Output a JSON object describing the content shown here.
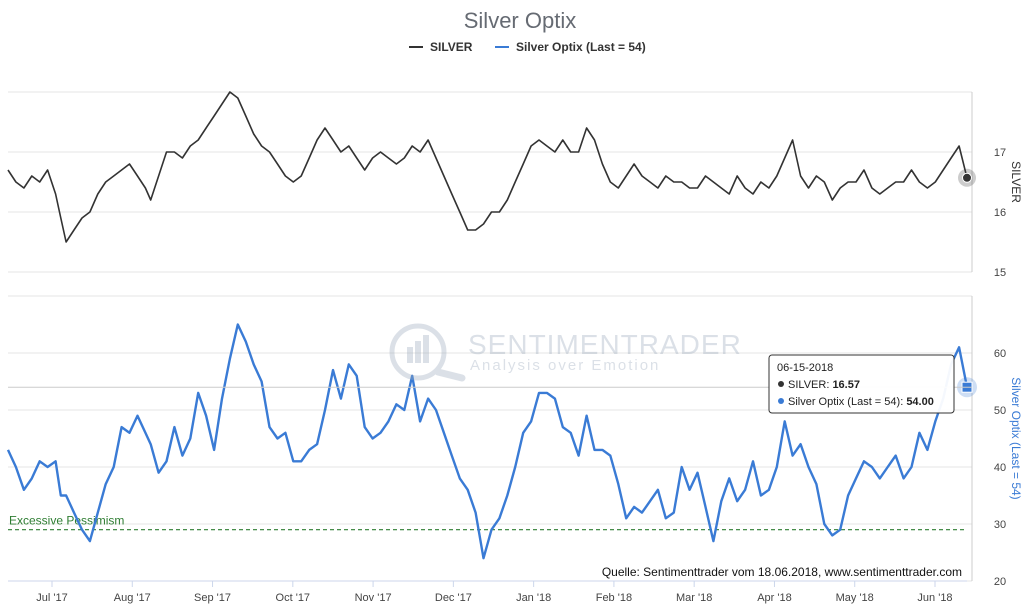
{
  "chart_data": {
    "type": "line",
    "title": "Silver Optix",
    "legend": {
      "position": "top-center",
      "items": [
        {
          "name": "SILVER",
          "color": "#333333"
        },
        {
          "name": "Silver Optix (Last = 54)",
          "color": "#3a7bd5"
        }
      ]
    },
    "x_tick_labels": [
      "Jul '17",
      "Aug '17",
      "Sep '17",
      "Oct '17",
      "Nov '17",
      "Dec '17",
      "Jan '18",
      "Feb '18",
      "Mar '18",
      "Apr '18",
      "May '18",
      "Jun '18"
    ],
    "x_range": [
      "2017-06-16",
      "2018-06-15"
    ],
    "panels": [
      {
        "id": "silver",
        "series_name": "SILVER",
        "color": "#333333",
        "axis_title": "SILVER",
        "y_range": [
          15,
          18
        ],
        "y_ticks": [
          15,
          16,
          17
        ],
        "points": [
          {
            "t": 0,
            "v": 16.7
          },
          {
            "t": 1.5,
            "v": 16.5
          },
          {
            "t": 3,
            "v": 16.4
          },
          {
            "t": 4.5,
            "v": 16.6
          },
          {
            "t": 6,
            "v": 16.5
          },
          {
            "t": 7.5,
            "v": 16.7
          },
          {
            "t": 9,
            "v": 16.3
          },
          {
            "t": 10,
            "v": 15.9
          },
          {
            "t": 11,
            "v": 15.5
          },
          {
            "t": 12.5,
            "v": 15.7
          },
          {
            "t": 14,
            "v": 15.9
          },
          {
            "t": 15.5,
            "v": 16.0
          },
          {
            "t": 17,
            "v": 16.3
          },
          {
            "t": 18.5,
            "v": 16.5
          },
          {
            "t": 20,
            "v": 16.6
          },
          {
            "t": 21.5,
            "v": 16.7
          },
          {
            "t": 23,
            "v": 16.8
          },
          {
            "t": 24.5,
            "v": 16.6
          },
          {
            "t": 26,
            "v": 16.4
          },
          {
            "t": 27,
            "v": 16.2
          },
          {
            "t": 28.5,
            "v": 16.6
          },
          {
            "t": 30,
            "v": 17.0
          },
          {
            "t": 31.5,
            "v": 17.0
          },
          {
            "t": 33,
            "v": 16.9
          },
          {
            "t": 34.5,
            "v": 17.1
          },
          {
            "t": 36,
            "v": 17.2
          },
          {
            "t": 37.5,
            "v": 17.4
          },
          {
            "t": 39,
            "v": 17.6
          },
          {
            "t": 40.5,
            "v": 17.8
          },
          {
            "t": 42,
            "v": 18.0
          },
          {
            "t": 43.5,
            "v": 17.9
          },
          {
            "t": 45,
            "v": 17.6
          },
          {
            "t": 46.5,
            "v": 17.3
          },
          {
            "t": 48,
            "v": 17.1
          },
          {
            "t": 49.5,
            "v": 17.0
          },
          {
            "t": 51,
            "v": 16.8
          },
          {
            "t": 52.5,
            "v": 16.6
          },
          {
            "t": 54,
            "v": 16.5
          },
          {
            "t": 55.5,
            "v": 16.6
          },
          {
            "t": 57,
            "v": 16.9
          },
          {
            "t": 58.5,
            "v": 17.2
          },
          {
            "t": 60,
            "v": 17.4
          },
          {
            "t": 61.5,
            "v": 17.2
          },
          {
            "t": 63,
            "v": 17.0
          },
          {
            "t": 64.5,
            "v": 17.1
          },
          {
            "t": 66,
            "v": 16.9
          },
          {
            "t": 67.5,
            "v": 16.7
          },
          {
            "t": 69,
            "v": 16.9
          },
          {
            "t": 70.5,
            "v": 17.0
          },
          {
            "t": 72,
            "v": 16.9
          },
          {
            "t": 73.5,
            "v": 16.8
          },
          {
            "t": 75,
            "v": 16.9
          },
          {
            "t": 76.5,
            "v": 17.1
          },
          {
            "t": 78,
            "v": 17.0
          },
          {
            "t": 79.5,
            "v": 17.2
          },
          {
            "t": 81,
            "v": 16.9
          },
          {
            "t": 82.5,
            "v": 16.6
          },
          {
            "t": 84,
            "v": 16.3
          },
          {
            "t": 85.5,
            "v": 16.0
          },
          {
            "t": 87,
            "v": 15.7
          },
          {
            "t": 88.5,
            "v": 15.7
          },
          {
            "t": 90,
            "v": 15.8
          },
          {
            "t": 91.5,
            "v": 16.0
          },
          {
            "t": 93,
            "v": 16.0
          },
          {
            "t": 94.5,
            "v": 16.2
          },
          {
            "t": 96,
            "v": 16.5
          },
          {
            "t": 97.5,
            "v": 16.8
          },
          {
            "t": 99,
            "v": 17.1
          },
          {
            "t": 100.5,
            "v": 17.2
          },
          {
            "t": 102,
            "v": 17.1
          },
          {
            "t": 103.5,
            "v": 17.0
          },
          {
            "t": 105,
            "v": 17.2
          },
          {
            "t": 106.5,
            "v": 17.0
          },
          {
            "t": 108,
            "v": 17.0
          },
          {
            "t": 109.5,
            "v": 17.4
          },
          {
            "t": 111,
            "v": 17.2
          },
          {
            "t": 112.5,
            "v": 16.8
          },
          {
            "t": 114,
            "v": 16.5
          },
          {
            "t": 115.5,
            "v": 16.4
          },
          {
            "t": 117,
            "v": 16.6
          },
          {
            "t": 118.5,
            "v": 16.8
          },
          {
            "t": 120,
            "v": 16.6
          },
          {
            "t": 121.5,
            "v": 16.5
          },
          {
            "t": 123,
            "v": 16.4
          },
          {
            "t": 124.5,
            "v": 16.6
          },
          {
            "t": 126,
            "v": 16.5
          },
          {
            "t": 127.5,
            "v": 16.5
          },
          {
            "t": 129,
            "v": 16.4
          },
          {
            "t": 130.5,
            "v": 16.4
          },
          {
            "t": 132,
            "v": 16.6
          },
          {
            "t": 133.5,
            "v": 16.5
          },
          {
            "t": 135,
            "v": 16.4
          },
          {
            "t": 136.5,
            "v": 16.3
          },
          {
            "t": 138,
            "v": 16.6
          },
          {
            "t": 139.5,
            "v": 16.4
          },
          {
            "t": 141,
            "v": 16.3
          },
          {
            "t": 142.5,
            "v": 16.5
          },
          {
            "t": 144,
            "v": 16.4
          },
          {
            "t": 145.5,
            "v": 16.6
          },
          {
            "t": 147,
            "v": 16.9
          },
          {
            "t": 148.5,
            "v": 17.2
          },
          {
            "t": 150,
            "v": 16.6
          },
          {
            "t": 151.5,
            "v": 16.4
          },
          {
            "t": 153,
            "v": 16.6
          },
          {
            "t": 154.5,
            "v": 16.5
          },
          {
            "t": 156,
            "v": 16.2
          },
          {
            "t": 157.5,
            "v": 16.4
          },
          {
            "t": 159,
            "v": 16.5
          },
          {
            "t": 160.5,
            "v": 16.5
          },
          {
            "t": 162,
            "v": 16.7
          },
          {
            "t": 163.5,
            "v": 16.4
          },
          {
            "t": 165,
            "v": 16.3
          },
          {
            "t": 166.5,
            "v": 16.4
          },
          {
            "t": 168,
            "v": 16.5
          },
          {
            "t": 169.5,
            "v": 16.5
          },
          {
            "t": 171,
            "v": 16.7
          },
          {
            "t": 172.5,
            "v": 16.5
          },
          {
            "t": 174,
            "v": 16.4
          },
          {
            "t": 175.5,
            "v": 16.5
          },
          {
            "t": 177,
            "v": 16.7
          },
          {
            "t": 178.5,
            "v": 16.9
          },
          {
            "t": 180,
            "v": 17.1
          },
          {
            "t": 181.5,
            "v": 16.57
          }
        ]
      },
      {
        "id": "optix",
        "series_name": "Silver Optix (Last = 54)",
        "color": "#3a7bd5",
        "axis_title": "Silver Optix (Last = 54)",
        "y_range": [
          20,
          70
        ],
        "y_ticks": [
          20,
          30,
          40,
          50,
          60
        ],
        "reference_line": {
          "value": 29,
          "label": "Excessive Pessimism",
          "color": "#2e7d32"
        },
        "points": [
          {
            "t": 0,
            "v": 43
          },
          {
            "t": 1.5,
            "v": 40
          },
          {
            "t": 3,
            "v": 36
          },
          {
            "t": 4.5,
            "v": 38
          },
          {
            "t": 6,
            "v": 41
          },
          {
            "t": 7.5,
            "v": 40
          },
          {
            "t": 9,
            "v": 41
          },
          {
            "t": 10,
            "v": 35
          },
          {
            "t": 11,
            "v": 35
          },
          {
            "t": 12.5,
            "v": 32
          },
          {
            "t": 14,
            "v": 29
          },
          {
            "t": 15.5,
            "v": 27
          },
          {
            "t": 17,
            "v": 32
          },
          {
            "t": 18.5,
            "v": 37
          },
          {
            "t": 20,
            "v": 40
          },
          {
            "t": 21.5,
            "v": 47
          },
          {
            "t": 23,
            "v": 46
          },
          {
            "t": 24.5,
            "v": 49
          },
          {
            "t": 26,
            "v": 46
          },
          {
            "t": 27,
            "v": 44
          },
          {
            "t": 28.5,
            "v": 39
          },
          {
            "t": 30,
            "v": 41
          },
          {
            "t": 31.5,
            "v": 47
          },
          {
            "t": 33,
            "v": 42
          },
          {
            "t": 34.5,
            "v": 45
          },
          {
            "t": 36,
            "v": 53
          },
          {
            "t": 37.5,
            "v": 49
          },
          {
            "t": 39,
            "v": 43
          },
          {
            "t": 40.5,
            "v": 52
          },
          {
            "t": 42,
            "v": 59
          },
          {
            "t": 43.5,
            "v": 65
          },
          {
            "t": 45,
            "v": 62
          },
          {
            "t": 46.5,
            "v": 58
          },
          {
            "t": 48,
            "v": 55
          },
          {
            "t": 49.5,
            "v": 47
          },
          {
            "t": 51,
            "v": 45
          },
          {
            "t": 52.5,
            "v": 46
          },
          {
            "t": 54,
            "v": 41
          },
          {
            "t": 55.5,
            "v": 41
          },
          {
            "t": 57,
            "v": 43
          },
          {
            "t": 58.5,
            "v": 44
          },
          {
            "t": 60,
            "v": 50
          },
          {
            "t": 61.5,
            "v": 57
          },
          {
            "t": 63,
            "v": 52
          },
          {
            "t": 64.5,
            "v": 58
          },
          {
            "t": 66,
            "v": 56
          },
          {
            "t": 67.5,
            "v": 47
          },
          {
            "t": 69,
            "v": 45
          },
          {
            "t": 70.5,
            "v": 46
          },
          {
            "t": 72,
            "v": 48
          },
          {
            "t": 73.5,
            "v": 51
          },
          {
            "t": 75,
            "v": 50
          },
          {
            "t": 76.5,
            "v": 56
          },
          {
            "t": 78,
            "v": 48
          },
          {
            "t": 79.5,
            "v": 52
          },
          {
            "t": 81,
            "v": 50
          },
          {
            "t": 82.5,
            "v": 46
          },
          {
            "t": 84,
            "v": 42
          },
          {
            "t": 85.5,
            "v": 38
          },
          {
            "t": 87,
            "v": 36
          },
          {
            "t": 88.5,
            "v": 32
          },
          {
            "t": 90,
            "v": 24
          },
          {
            "t": 91.5,
            "v": 29
          },
          {
            "t": 93,
            "v": 31
          },
          {
            "t": 94.5,
            "v": 35
          },
          {
            "t": 96,
            "v": 40
          },
          {
            "t": 97.5,
            "v": 46
          },
          {
            "t": 99,
            "v": 48
          },
          {
            "t": 100.5,
            "v": 53
          },
          {
            "t": 102,
            "v": 53
          },
          {
            "t": 103.5,
            "v": 52
          },
          {
            "t": 105,
            "v": 47
          },
          {
            "t": 106.5,
            "v": 46
          },
          {
            "t": 108,
            "v": 42
          },
          {
            "t": 109.5,
            "v": 49
          },
          {
            "t": 111,
            "v": 43
          },
          {
            "t": 112.5,
            "v": 43
          },
          {
            "t": 114,
            "v": 42
          },
          {
            "t": 115.5,
            "v": 37
          },
          {
            "t": 117,
            "v": 31
          },
          {
            "t": 118.5,
            "v": 33
          },
          {
            "t": 120,
            "v": 32
          },
          {
            "t": 121.5,
            "v": 34
          },
          {
            "t": 123,
            "v": 36
          },
          {
            "t": 124.5,
            "v": 31
          },
          {
            "t": 126,
            "v": 32
          },
          {
            "t": 127.5,
            "v": 40
          },
          {
            "t": 129,
            "v": 36
          },
          {
            "t": 130.5,
            "v": 39
          },
          {
            "t": 132,
            "v": 33
          },
          {
            "t": 133.5,
            "v": 27
          },
          {
            "t": 135,
            "v": 34
          },
          {
            "t": 136.5,
            "v": 38
          },
          {
            "t": 138,
            "v": 34
          },
          {
            "t": 139.5,
            "v": 36
          },
          {
            "t": 141,
            "v": 41
          },
          {
            "t": 142.5,
            "v": 35
          },
          {
            "t": 144,
            "v": 36
          },
          {
            "t": 145.5,
            "v": 40
          },
          {
            "t": 147,
            "v": 48
          },
          {
            "t": 148.5,
            "v": 42
          },
          {
            "t": 150,
            "v": 44
          },
          {
            "t": 151.5,
            "v": 40
          },
          {
            "t": 153,
            "v": 37
          },
          {
            "t": 154.5,
            "v": 30
          },
          {
            "t": 156,
            "v": 28
          },
          {
            "t": 157.5,
            "v": 29
          },
          {
            "t": 159,
            "v": 35
          },
          {
            "t": 160.5,
            "v": 38
          },
          {
            "t": 162,
            "v": 41
          },
          {
            "t": 163.5,
            "v": 40
          },
          {
            "t": 165,
            "v": 38
          },
          {
            "t": 166.5,
            "v": 40
          },
          {
            "t": 168,
            "v": 42
          },
          {
            "t": 169.5,
            "v": 38
          },
          {
            "t": 171,
            "v": 40
          },
          {
            "t": 172.5,
            "v": 46
          },
          {
            "t": 174,
            "v": 43
          },
          {
            "t": 175.5,
            "v": 48
          },
          {
            "t": 177,
            "v": 52
          },
          {
            "t": 178.5,
            "v": 58
          },
          {
            "t": 180,
            "v": 61
          },
          {
            "t": 181.5,
            "v": 54
          }
        ]
      }
    ],
    "tooltip": {
      "date": "06-15-2018",
      "rows": [
        {
          "name": "SILVER",
          "value": "16.57",
          "color": "#333333"
        },
        {
          "name": "Silver Optix (Last = 54)",
          "value": "54.00",
          "color": "#3a7bd5"
        }
      ]
    },
    "watermark": {
      "brand": "SENTIMENTRADER",
      "tagline": "Analysis over Emotion"
    },
    "source": "Quelle: Sentimenttrader vom 18.06.2018, www.sentimenttrader.com"
  }
}
